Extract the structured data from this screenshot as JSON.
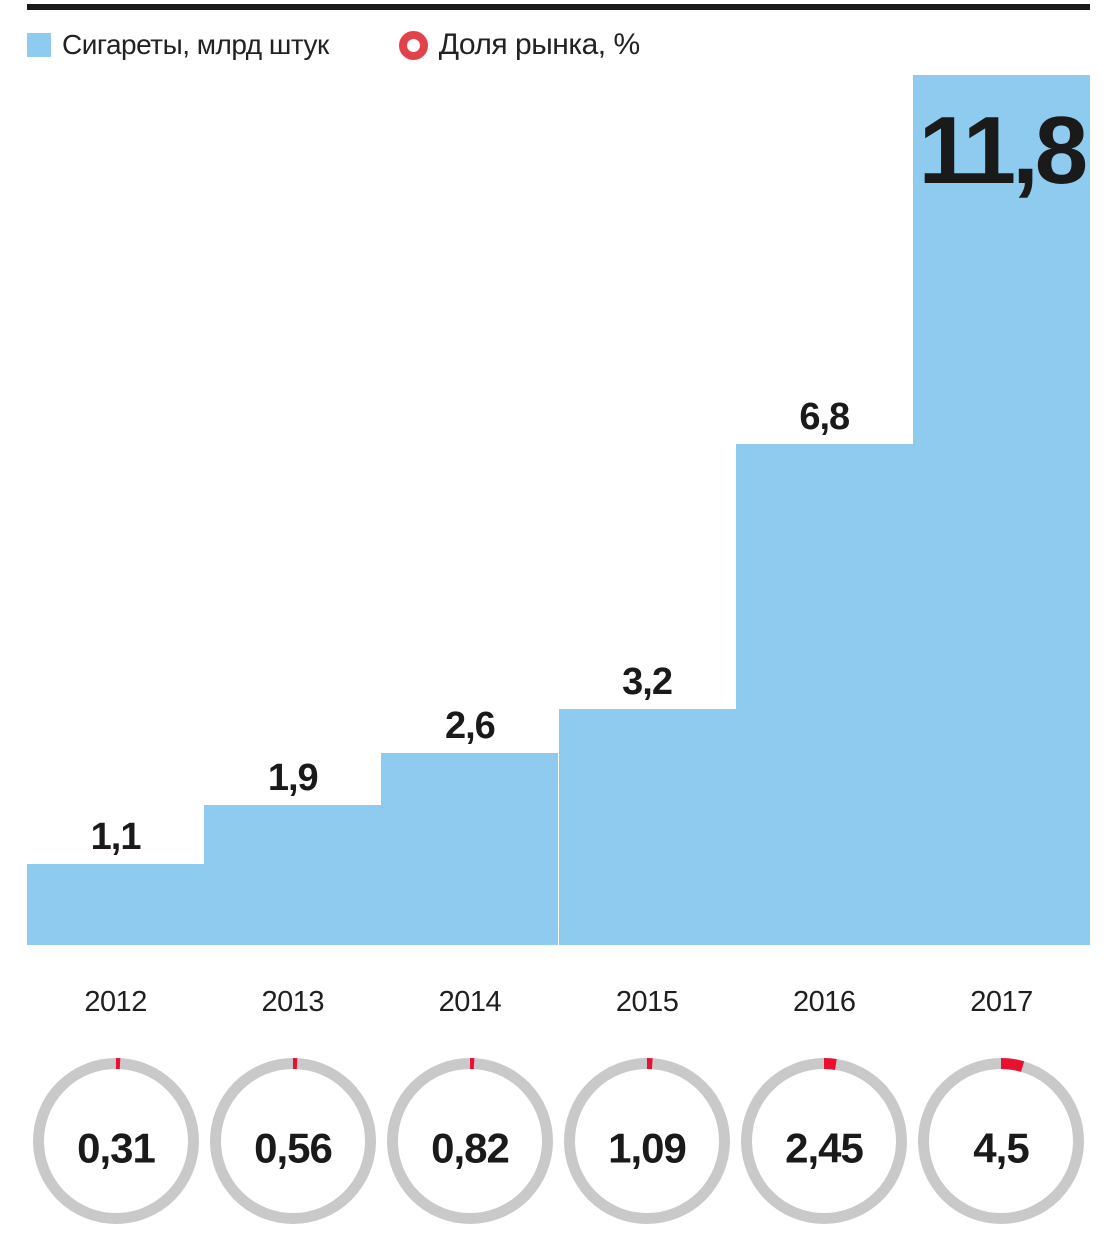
{
  "legend": {
    "items": [
      {
        "label": "Сигареты, млрд штук",
        "swatch": "square",
        "color": "#8ecbee"
      },
      {
        "label": "Доля рынка, %",
        "swatch": "ring",
        "color": "#e2434a"
      }
    ]
  },
  "chart_data": {
    "type": "bar",
    "title": "",
    "categories": [
      "2012",
      "2013",
      "2014",
      "2015",
      "2016",
      "2017"
    ],
    "series": [
      {
        "name": "Сигареты, млрд штук",
        "type": "step-bar",
        "color": "#8ecbee",
        "values": [
          1.1,
          1.9,
          2.6,
          3.2,
          6.8,
          11.8
        ],
        "labels": [
          "1,1",
          "1,9",
          "2,6",
          "3,2",
          "6,8",
          "11,8"
        ]
      },
      {
        "name": "Доля рынка, %",
        "type": "donut-gauge",
        "color": "#e8112f",
        "track_color": "#c9c9c9",
        "gauge_max": 100,
        "values": [
          0.31,
          0.56,
          0.82,
          1.09,
          2.45,
          4.5
        ],
        "labels": [
          "0,31",
          "0,56",
          "0,82",
          "1,09",
          "2,45",
          "4,5"
        ]
      }
    ],
    "ylim": [
      0,
      11.8
    ],
    "grid": false,
    "legend_position": "top",
    "text_color": "#1a1a1a"
  }
}
